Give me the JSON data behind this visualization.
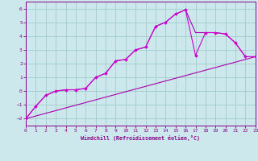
{
  "xlabel": "Windchill (Refroidissement éolien,°C)",
  "xlim": [
    0,
    23
  ],
  "ylim": [
    -2.5,
    6.5
  ],
  "xticks": [
    0,
    1,
    2,
    3,
    4,
    5,
    6,
    7,
    8,
    9,
    10,
    11,
    12,
    13,
    14,
    15,
    16,
    17,
    18,
    19,
    20,
    21,
    22,
    23
  ],
  "yticks": [
    -2,
    -1,
    0,
    1,
    2,
    3,
    4,
    5,
    6
  ],
  "bg_color": "#cde8ec",
  "line_purple": "#aa00aa",
  "line_magenta": "#cc00cc",
  "grid_color": "#a0cccc",
  "curve1_x": [
    0,
    1,
    2,
    3,
    4,
    5,
    6,
    7,
    8,
    9,
    10,
    11,
    12,
    13,
    14,
    15,
    16,
    17,
    18,
    19,
    20,
    21,
    22,
    23
  ],
  "curve1_y": [
    -2.0,
    -1.1,
    -0.3,
    0.0,
    0.1,
    0.1,
    0.2,
    1.0,
    1.3,
    2.2,
    2.3,
    3.0,
    3.2,
    4.7,
    5.0,
    5.6,
    5.9,
    2.6,
    4.25,
    4.25,
    4.15,
    3.5,
    2.5,
    2.5
  ],
  "curve2_x": [
    0,
    1,
    2,
    3,
    4,
    5,
    6,
    7,
    8,
    9,
    10,
    11,
    12,
    13,
    14,
    15,
    16,
    17,
    18,
    19,
    20,
    21,
    22,
    23
  ],
  "curve2_y": [
    -2.0,
    -1.1,
    -0.3,
    0.0,
    0.1,
    0.1,
    0.2,
    1.0,
    1.3,
    2.2,
    2.3,
    3.0,
    3.2,
    4.7,
    5.0,
    5.6,
    5.9,
    4.25,
    4.25,
    4.25,
    4.15,
    3.5,
    2.5,
    2.5
  ],
  "line_x": [
    0,
    23
  ],
  "line_y": [
    -2.0,
    2.5
  ],
  "spine_color": "#880088",
  "tick_color": "#880088"
}
